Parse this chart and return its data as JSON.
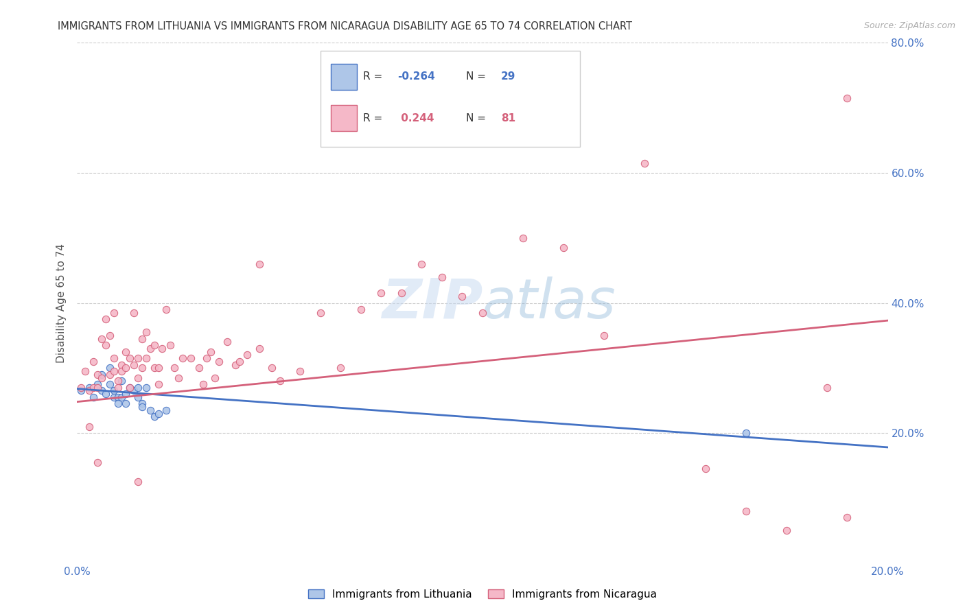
{
  "title": "IMMIGRANTS FROM LITHUANIA VS IMMIGRANTS FROM NICARAGUA DISABILITY AGE 65 TO 74 CORRELATION CHART",
  "source": "Source: ZipAtlas.com",
  "ylabel": "Disability Age 65 to 74",
  "xlim": [
    0.0,
    0.2
  ],
  "ylim": [
    0.0,
    0.8
  ],
  "xtick_positions": [
    0.0,
    0.05,
    0.1,
    0.15,
    0.2
  ],
  "xtick_labels": [
    "0.0%",
    "",
    "",
    "",
    "20.0%"
  ],
  "ytick_positions": [
    0.2,
    0.4,
    0.6,
    0.8
  ],
  "ytick_labels": [
    "20.0%",
    "40.0%",
    "60.0%",
    "80.0%"
  ],
  "grid_color": "#cccccc",
  "background_color": "#ffffff",
  "color_lithuania": "#aec6e8",
  "color_nicaragua": "#f5b8c8",
  "line_color_lithuania": "#4472c4",
  "line_color_nicaragua": "#d4607a",
  "scatter_lithuania": {
    "x": [
      0.001,
      0.003,
      0.004,
      0.005,
      0.006,
      0.006,
      0.007,
      0.008,
      0.008,
      0.009,
      0.009,
      0.01,
      0.01,
      0.011,
      0.011,
      0.012,
      0.012,
      0.013,
      0.014,
      0.015,
      0.015,
      0.016,
      0.016,
      0.017,
      0.018,
      0.019,
      0.02,
      0.022,
      0.165
    ],
    "y": [
      0.265,
      0.27,
      0.255,
      0.275,
      0.29,
      0.265,
      0.26,
      0.3,
      0.275,
      0.265,
      0.255,
      0.255,
      0.245,
      0.28,
      0.255,
      0.26,
      0.245,
      0.27,
      0.265,
      0.27,
      0.255,
      0.245,
      0.24,
      0.27,
      0.235,
      0.225,
      0.23,
      0.235,
      0.2
    ]
  },
  "scatter_nicaragua": {
    "x": [
      0.001,
      0.002,
      0.003,
      0.004,
      0.004,
      0.005,
      0.005,
      0.006,
      0.006,
      0.007,
      0.007,
      0.008,
      0.008,
      0.009,
      0.009,
      0.009,
      0.01,
      0.01,
      0.011,
      0.011,
      0.012,
      0.012,
      0.013,
      0.013,
      0.014,
      0.014,
      0.015,
      0.015,
      0.016,
      0.016,
      0.017,
      0.017,
      0.018,
      0.019,
      0.019,
      0.02,
      0.02,
      0.021,
      0.022,
      0.023,
      0.024,
      0.025,
      0.026,
      0.028,
      0.03,
      0.031,
      0.032,
      0.033,
      0.034,
      0.035,
      0.037,
      0.039,
      0.04,
      0.042,
      0.045,
      0.048,
      0.05,
      0.055,
      0.06,
      0.065,
      0.07,
      0.075,
      0.08,
      0.085,
      0.09,
      0.095,
      0.1,
      0.11,
      0.12,
      0.13,
      0.14,
      0.155,
      0.165,
      0.175,
      0.185,
      0.19,
      0.003,
      0.005,
      0.015,
      0.045,
      0.19
    ],
    "y": [
      0.27,
      0.295,
      0.265,
      0.31,
      0.27,
      0.29,
      0.27,
      0.285,
      0.345,
      0.375,
      0.335,
      0.29,
      0.35,
      0.295,
      0.315,
      0.385,
      0.28,
      0.27,
      0.305,
      0.295,
      0.3,
      0.325,
      0.315,
      0.27,
      0.385,
      0.305,
      0.315,
      0.285,
      0.345,
      0.3,
      0.315,
      0.355,
      0.33,
      0.3,
      0.335,
      0.275,
      0.3,
      0.33,
      0.39,
      0.335,
      0.3,
      0.285,
      0.315,
      0.315,
      0.3,
      0.275,
      0.315,
      0.325,
      0.285,
      0.31,
      0.34,
      0.305,
      0.31,
      0.32,
      0.33,
      0.3,
      0.28,
      0.295,
      0.385,
      0.3,
      0.39,
      0.415,
      0.415,
      0.46,
      0.44,
      0.41,
      0.385,
      0.5,
      0.485,
      0.35,
      0.615,
      0.145,
      0.08,
      0.05,
      0.27,
      0.715,
      0.21,
      0.155,
      0.125,
      0.46,
      0.07
    ]
  },
  "trendline_lithuania": {
    "x": [
      0.0,
      0.2
    ],
    "y": [
      0.268,
      0.178
    ]
  },
  "trendline_nicaragua": {
    "x": [
      0.0,
      0.2
    ],
    "y": [
      0.248,
      0.373
    ]
  }
}
